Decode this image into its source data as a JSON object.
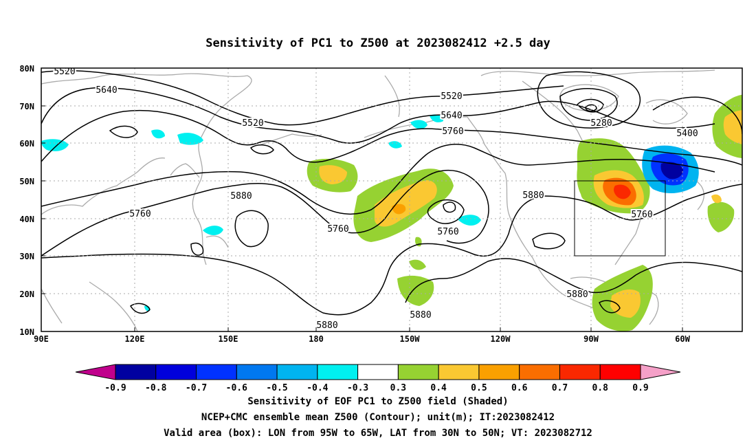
{
  "title": "Sensitivity of PC1 to Z500 at 2023082412 +2.5 day",
  "lat_labels": [
    "80N",
    "70N",
    "60N",
    "50N",
    "40N",
    "30N",
    "20N",
    "10N"
  ],
  "lon_labels": [
    "90E",
    "120E",
    "150E",
    "180",
    "150W",
    "120W",
    "90W",
    "60W"
  ],
  "contour_labels": [
    "5520",
    "5640",
    "5520",
    "5520",
    "5640",
    "5760",
    "5280",
    "5400",
    "5760",
    "5880",
    "5760",
    "5760",
    "5880",
    "5760",
    "5880",
    "5880",
    "5880"
  ],
  "colorbar": {
    "labels": [
      "-0.9",
      "-0.8",
      "-0.7",
      "-0.6",
      "-0.5",
      "-0.4",
      "-0.3",
      "0.3",
      "0.4",
      "0.5",
      "0.6",
      "0.7",
      "0.8",
      "0.9"
    ],
    "colors": [
      "#c0008c",
      "#0000a0",
      "#0000dc",
      "#0032ff",
      "#0078f0",
      "#00b4f0",
      "#00f0f0",
      "#ffffff",
      "#96d232",
      "#fac832",
      "#faa000",
      "#fa6e00",
      "#fa2800",
      "#ff0000",
      "#f5a0c8"
    ]
  },
  "valid_box": {
    "lon_from": "95W",
    "lon_to": "65W",
    "lat_from": "30N",
    "lat_to": "50N"
  },
  "captions": [
    "Sensitivity of EOF PC1 to Z500 field (Shaded)",
    "NCEP+CMC ensemble mean Z500 (Contour); unit(m); IT:2023082412",
    "Valid area (box): LON from 95W to 65W, LAT from 30N to 50N; VT: 2023082712"
  ]
}
